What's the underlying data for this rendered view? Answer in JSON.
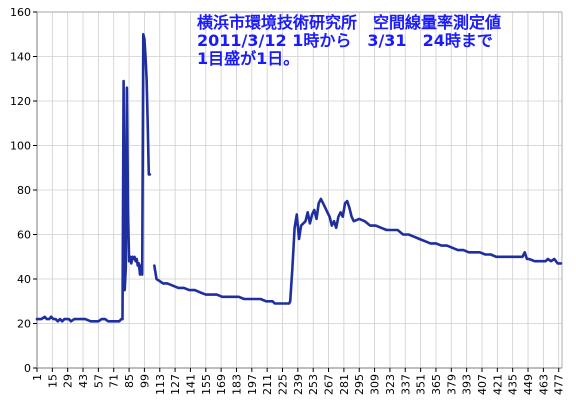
{
  "chart_data": {
    "type": "line",
    "title_lines": [
      "横浜市環境技術研究所　空間線量率測定値",
      "2011/3/12 1時から　3/31　24時まで",
      "1目盛が1日。"
    ],
    "xlabel": "",
    "ylabel": "",
    "ylim": [
      0,
      160
    ],
    "xlim": [
      1,
      480
    ],
    "y_ticks": [
      0,
      20,
      40,
      60,
      80,
      100,
      120,
      140,
      160
    ],
    "x_ticks": [
      1,
      15,
      29,
      43,
      57,
      71,
      85,
      99,
      113,
      127,
      141,
      155,
      169,
      183,
      197,
      211,
      225,
      239,
      253,
      267,
      281,
      295,
      309,
      323,
      337,
      351,
      365,
      379,
      393,
      407,
      421,
      435,
      449,
      463,
      477
    ],
    "grid": true,
    "series": [
      {
        "color": "#1f2f9f",
        "segments": [
          {
            "x": [
              1,
              5,
              8,
              10,
              12,
              14,
              16,
              18,
              20,
              22,
              24,
              26,
              28,
              30,
              32,
              35,
              38,
              42,
              45,
              50,
              54,
              57,
              60,
              63,
              66,
              70,
              73,
              76,
              78,
              79,
              80,
              81,
              82,
              83,
              84,
              85,
              86,
              87,
              88,
              89,
              90,
              91,
              92,
              93,
              94,
              95,
              96,
              97,
              98,
              99,
              100,
              101,
              102,
              103,
              104
            ],
            "y": [
              22,
              22,
              23,
              22,
              22,
              23,
              22,
              22,
              21,
              22,
              21,
              22,
              22,
              22,
              21,
              22,
              22,
              22,
              22,
              21,
              21,
              21,
              22,
              22,
              21,
              21,
              21,
              21,
              22,
              22,
              129,
              35,
              45,
              126,
              71,
              48,
              50,
              47,
              50,
              49,
              50,
              48,
              49,
              46,
              47,
              42,
              46,
              42,
              150,
              148,
              140,
              130,
              110,
              87,
              87
            ]
          },
          {
            "x": [
              108,
              110,
              113,
              116,
              120,
              125,
              130,
              135,
              140,
              145,
              150,
              155,
              160,
              165,
              170,
              175,
              180,
              185,
              190,
              195,
              200,
              205,
              210,
              213,
              216,
              218,
              220,
              222,
              224,
              226,
              228,
              230,
              231,
              232,
              234,
              236,
              238,
              240,
              242,
              244,
              246,
              248,
              250,
              252,
              254,
              256,
              258,
              260,
              262,
              264,
              266,
              268,
              270,
              272,
              274,
              276,
              278,
              280,
              282,
              284,
              286,
              288,
              290,
              295,
              300,
              305,
              310,
              315,
              320,
              325,
              330,
              335,
              340,
              345,
              350,
              355,
              360,
              365,
              370,
              375,
              380,
              385,
              390,
              395,
              400,
              405,
              410,
              415,
              420,
              425,
              430,
              435,
              440,
              444,
              446,
              448,
              450,
              455,
              460,
              463,
              465,
              467,
              470,
              473,
              476,
              479
            ],
            "y": [
              46,
              40,
              39,
              38,
              38,
              37,
              36,
              36,
              35,
              35,
              34,
              33,
              33,
              33,
              32,
              32,
              32,
              32,
              31,
              31,
              31,
              31,
              30,
              30,
              30,
              29,
              29,
              29,
              29,
              29,
              29,
              29,
              29,
              30,
              45,
              63,
              69,
              58,
              64,
              65,
              66,
              70,
              65,
              69,
              71,
              67,
              74,
              76,
              74,
              72,
              70,
              68,
              64,
              66,
              63,
              68,
              70,
              68,
              74,
              75,
              72,
              68,
              66,
              67,
              66,
              64,
              64,
              63,
              62,
              62,
              62,
              60,
              60,
              59,
              58,
              57,
              56,
              56,
              55,
              55,
              54,
              53,
              53,
              52,
              52,
              52,
              51,
              51,
              50,
              50,
              50,
              50,
              50,
              50,
              52,
              49,
              49,
              48,
              48,
              48,
              48,
              49,
              48,
              49,
              47,
              47
            ]
          }
        ]
      }
    ]
  }
}
